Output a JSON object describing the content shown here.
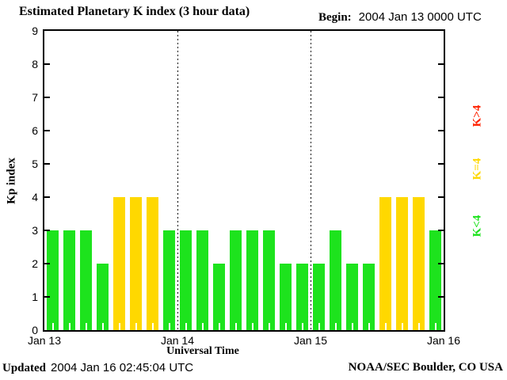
{
  "title": "Estimated Planetary K index (3 hour data)",
  "begin": {
    "label": "Begin:",
    "value": "2004 Jan 13 0000 UTC"
  },
  "axes": {
    "ylabel": "Kp index",
    "xlabel": "Universal Time"
  },
  "legend": [
    {
      "label": "K>4",
      "color": "#ff2200"
    },
    {
      "label": "K=4",
      "color": "#ffd800"
    },
    {
      "label": "K<4",
      "color": "#1de31d"
    }
  ],
  "footer": {
    "updated_label": "Updated",
    "updated_value": "2004 Jan 16 02:45:04 UTC",
    "credit": "NOAA/SEC Boulder, CO USA"
  },
  "chart_data": {
    "type": "bar",
    "title": "Estimated Planetary K index (3 hour data)",
    "xlabel": "Universal Time",
    "ylabel": "Kp index",
    "ylim": [
      0,
      9
    ],
    "yticks": [
      0,
      1,
      2,
      3,
      4,
      5,
      6,
      7,
      8,
      9
    ],
    "xtick_labels": [
      "Jan 13",
      "Jan 14",
      "Jan 15",
      "Jan 16"
    ],
    "hours_per_bar": 3,
    "bars_per_day": 8,
    "day_separator_indices": [
      8,
      16
    ],
    "values": [
      3,
      3,
      3,
      2,
      4,
      4,
      4,
      3,
      3,
      3,
      2,
      3,
      3,
      3,
      2,
      2,
      2,
      3,
      2,
      2,
      4,
      4,
      4,
      3
    ],
    "colors": {
      "k_lt_4": "#1de31d",
      "k_eq_4": "#ffd800",
      "k_gt_4": "#ff2200"
    },
    "grid": false,
    "legend_position": "right"
  }
}
